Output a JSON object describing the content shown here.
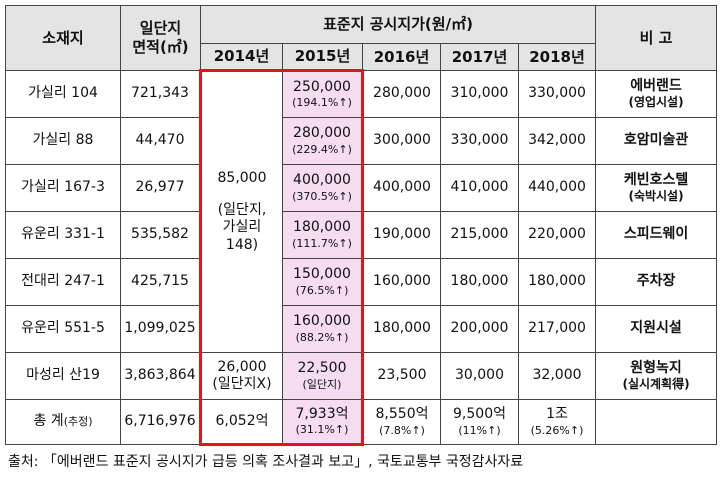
{
  "header": {
    "location": "소재지",
    "area": [
      "일단지",
      "면적(㎡)"
    ],
    "price_group": "표준지 공시지가(원/㎡)",
    "years": [
      "2014년",
      "2015년",
      "2016년",
      "2017년",
      "2018년"
    ],
    "note": "비 고"
  },
  "rows": [
    {
      "location": [
        "가실리 104"
      ],
      "area": [
        "721,343"
      ],
      "price_2014": [
        "85,000",
        "(일단지,",
        "가실리",
        "148)"
      ],
      "price_2015": [
        "250,000",
        "(194.1%↑)"
      ],
      "price_2016": [
        "280,000"
      ],
      "price_2017": [
        "310,000"
      ],
      "price_2018": [
        "330,000"
      ],
      "note": [
        "에버랜드",
        "(영업시설)"
      ]
    },
    {
      "location": [
        "가실리 88"
      ],
      "area": [
        "44,470"
      ],
      "price_2015": [
        "280,000",
        "(229.4%↑)"
      ],
      "price_2016": [
        "300,000"
      ],
      "price_2017": [
        "330,000"
      ],
      "price_2018": [
        "342,000"
      ],
      "note": [
        "호암미술관"
      ]
    },
    {
      "location": [
        "가실리 167-3"
      ],
      "area": [
        "26,977"
      ],
      "price_2015": [
        "400,000",
        "(370.5%↑)"
      ],
      "price_2016": [
        "400,000"
      ],
      "price_2017": [
        "410,000"
      ],
      "price_2018": [
        "440,000"
      ],
      "note": [
        "케빈호스텔",
        "(숙박시설)"
      ]
    },
    {
      "location": [
        "유운리 331-1"
      ],
      "area": [
        "535,582"
      ],
      "price_2015": [
        "180,000",
        "(111.7%↑)"
      ],
      "price_2016": [
        "190,000"
      ],
      "price_2017": [
        "215,000"
      ],
      "price_2018": [
        "220,000"
      ],
      "note": [
        "스피드웨이"
      ]
    },
    {
      "location": [
        "전대리 247-1"
      ],
      "area": [
        "425,715"
      ],
      "price_2015": [
        "150,000",
        "(76.5%↑)"
      ],
      "price_2016": [
        "160,000"
      ],
      "price_2017": [
        "180,000"
      ],
      "price_2018": [
        "180,000"
      ],
      "note": [
        "주차장"
      ]
    },
    {
      "location": [
        "유운리 551-5"
      ],
      "area": [
        "1,099,025"
      ],
      "price_2015": [
        "160,000",
        "(88.2%↑)"
      ],
      "price_2016": [
        "180,000"
      ],
      "price_2017": [
        "200,000"
      ],
      "price_2018": [
        "217,000"
      ],
      "note": [
        "지원시설"
      ]
    },
    {
      "location": [
        "마성리 산19"
      ],
      "area": [
        "3,863,864"
      ],
      "price_2014": [
        "26,000",
        "(일단지X)"
      ],
      "price_2015": [
        "22,500",
        "(일단지)"
      ],
      "price_2016": [
        "23,500"
      ],
      "price_2017": [
        "30,000"
      ],
      "price_2018": [
        "32,000"
      ],
      "note": [
        "원형녹지",
        "(실시계획得)"
      ]
    }
  ],
  "total": {
    "location": [
      "총 계",
      "(추정)"
    ],
    "area": [
      "6,716,976"
    ],
    "price_2014": [
      "6,052억"
    ],
    "price_2015": [
      "7,933억",
      "(31.1%↑)"
    ],
    "price_2016": [
      "8,550억",
      "(7.8%↑)"
    ],
    "price_2017": [
      "9,500억",
      "(11%↑)"
    ],
    "price_2018": [
      "1조",
      "(5.26%↑)"
    ]
  },
  "source": "출처: 「에버랜드 표준지 공시지가 급등 의혹 조사결과 보고」, 국토교통부 국정감사자료"
}
